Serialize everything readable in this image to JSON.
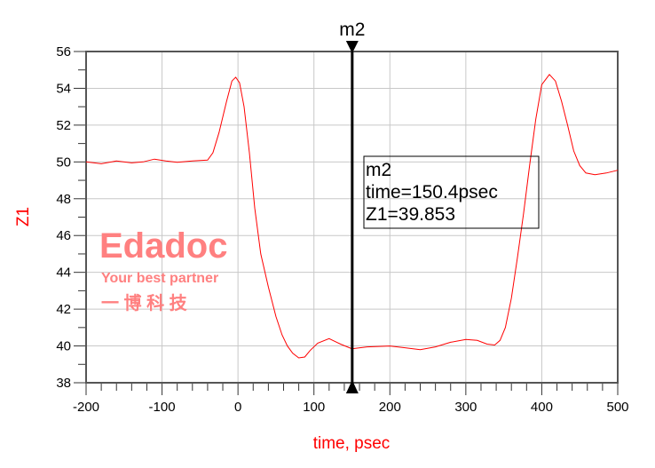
{
  "chart_data": {
    "type": "line",
    "title": "",
    "xlabel": "time, psec",
    "ylabel": "Z1",
    "xlim": [
      -200,
      500
    ],
    "ylim": [
      38,
      56
    ],
    "x_ticks": [
      "-200",
      "-100",
      "0",
      "100",
      "200",
      "300",
      "400",
      "500"
    ],
    "y_ticks": [
      "38",
      "40",
      "42",
      "44",
      "46",
      "48",
      "50",
      "52",
      "54",
      "56"
    ],
    "grid": true,
    "series": [
      {
        "color": "#ff0000",
        "x": [
          -200,
          -180,
          -160,
          -140,
          -125,
          -110,
          -95,
          -80,
          -60,
          -40,
          -33,
          -25,
          -15,
          -8,
          -3,
          2,
          8,
          15,
          22,
          30,
          40,
          50,
          58,
          65,
          72,
          80,
          88,
          95,
          105,
          120,
          135,
          150,
          170,
          200,
          220,
          240,
          260,
          280,
          300,
          315,
          328,
          338,
          345,
          352,
          360,
          368,
          376,
          384,
          392,
          400,
          410,
          418,
          426,
          434,
          442,
          450,
          458,
          470,
          485,
          500
        ],
        "y": [
          50.0,
          49.9,
          50.05,
          49.95,
          50.0,
          50.15,
          50.05,
          49.98,
          50.05,
          50.1,
          50.5,
          51.6,
          53.3,
          54.4,
          54.6,
          54.3,
          53.0,
          50.5,
          47.5,
          45.0,
          43.2,
          41.6,
          40.6,
          40.0,
          39.6,
          39.35,
          39.4,
          39.75,
          40.15,
          40.4,
          40.1,
          39.85,
          39.95,
          40.0,
          39.9,
          39.8,
          39.95,
          40.2,
          40.35,
          40.3,
          40.1,
          40.05,
          40.3,
          41.0,
          42.6,
          44.8,
          47.2,
          49.8,
          52.3,
          54.2,
          54.75,
          54.4,
          53.3,
          52.0,
          50.6,
          49.8,
          49.4,
          49.3,
          49.4,
          49.55
        ]
      }
    ],
    "marker": {
      "name": "m2",
      "x": 150.4,
      "y": 39.853,
      "readout": [
        "m2",
        "time=150.4psec",
        "Z1=39.853"
      ]
    },
    "colors": {
      "trace": "#ff0000",
      "axis_label": "#ff0000",
      "grid": "#c8c8c8",
      "marker": "#000000",
      "watermark": "#ff8080"
    },
    "watermark": {
      "logo": "Edadoc",
      "tagline": "Your best partner",
      "chinese": "一 博 科 技"
    }
  }
}
